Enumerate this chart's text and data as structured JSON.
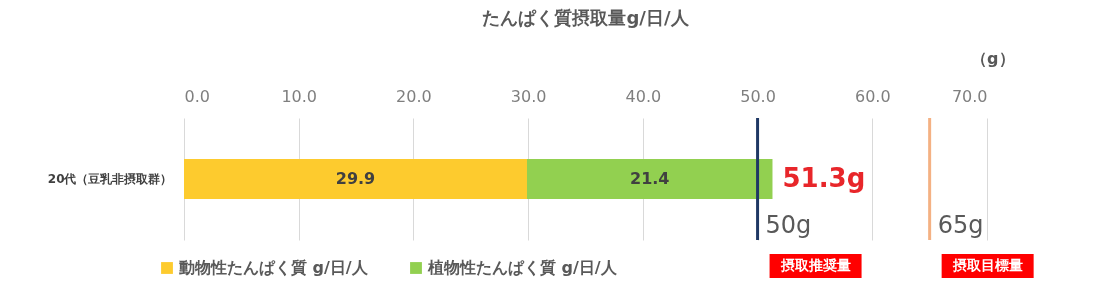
{
  "chart_data": {
    "type": "bar",
    "orientation": "horizontal",
    "stacked": true,
    "title": "たんぱく質摂取量g/日/人",
    "xlabel": "（g）",
    "categories": [
      "20代（豆乳非摂取群）"
    ],
    "series": [
      {
        "name": "動物性たんぱく質 g/日/人",
        "color": "#fdcb2e",
        "values": [
          29.9
        ]
      },
      {
        "name": "植物性たんぱく質 g/日/人",
        "color": "#92d050",
        "values": [
          21.4
        ]
      }
    ],
    "data_labels": true,
    "totals": [
      "51.3g"
    ],
    "xlim": [
      0,
      70
    ],
    "xticks": [
      {
        "value": 0,
        "label": "0.0"
      },
      {
        "value": 10,
        "label": "10.0"
      },
      {
        "value": 20,
        "label": "20.0"
      },
      {
        "value": 30,
        "label": "30.0"
      },
      {
        "value": 40,
        "label": "40.0"
      },
      {
        "value": 50,
        "label": "50.0"
      },
      {
        "value": 60,
        "label": "60.0"
      },
      {
        "value": 70,
        "label": "70.0"
      }
    ],
    "grid": "x",
    "legend": "bottom",
    "ref_lines": [
      {
        "axis": "x",
        "value": 50,
        "label": "50g",
        "color": "#1f3864"
      },
      {
        "axis": "x",
        "value": 65,
        "label": "65g",
        "color": "#f4b183"
      }
    ],
    "annotations": [
      "摂取推奨量",
      "摂取目標量"
    ]
  }
}
